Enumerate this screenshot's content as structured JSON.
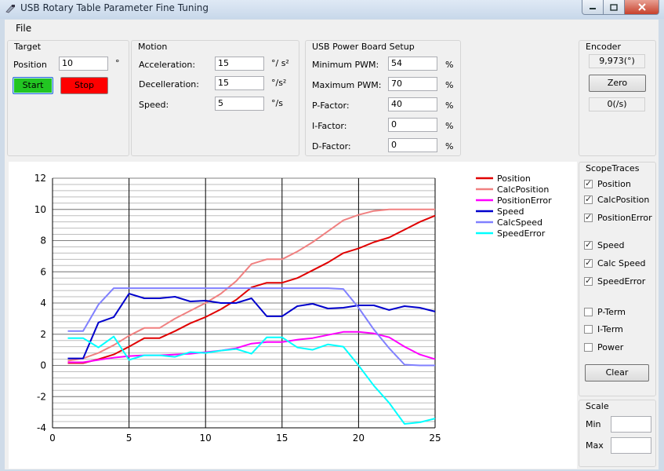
{
  "window": {
    "title": "USB Rotary Table Parameter Fine Tuning"
  },
  "menu": {
    "file": "File"
  },
  "target": {
    "title": "Target",
    "position_label": "Position",
    "position_value": "10",
    "unit": "°",
    "start": "Start",
    "stop": "Stop"
  },
  "motion": {
    "title": "Motion",
    "rows": [
      {
        "label": "Acceleration:",
        "value": "15",
        "unit": "°/ s²"
      },
      {
        "label": "Decelleration:",
        "value": "15",
        "unit": "°/s²"
      },
      {
        "label": "Speed:",
        "value": "5",
        "unit": "°/s"
      }
    ]
  },
  "power": {
    "title": "USB Power Board Setup",
    "rows": [
      {
        "label": "Minimum PWM:",
        "value": "54",
        "unit": "%"
      },
      {
        "label": "Maximum PWM:",
        "value": "70",
        "unit": "%"
      },
      {
        "label": "P-Factor:",
        "value": "40",
        "unit": "%"
      },
      {
        "label": "I-Factor:",
        "value": "0",
        "unit": "%"
      },
      {
        "label": "D-Factor:",
        "value": "0",
        "unit": "%"
      }
    ]
  },
  "encoder": {
    "title": "Encoder",
    "angle": "9,973(°)",
    "zero": "Zero",
    "speed": "0(/s)"
  },
  "scope": {
    "title": "ScopeTraces",
    "items": [
      {
        "label": "Position",
        "checked": true
      },
      {
        "label": "CalcPosition",
        "checked": true
      },
      {
        "label": "PositionError",
        "checked": true
      },
      {
        "label": "Speed",
        "checked": true
      },
      {
        "label": "Calc Speed",
        "checked": true
      },
      {
        "label": "SpeedError",
        "checked": true
      },
      {
        "label": "P-Term",
        "checked": false
      },
      {
        "label": "I-Term",
        "checked": false
      },
      {
        "label": "Power",
        "checked": false
      }
    ],
    "clear": "Clear"
  },
  "scale": {
    "title": "Scale",
    "min_label": "Min",
    "max_label": "Max",
    "min_value": "",
    "max_value": ""
  },
  "colors": {
    "start": "#22c522",
    "stop": "#ff0000"
  },
  "chart_data": {
    "type": "line",
    "xlim": [
      0,
      25
    ],
    "ylim": [
      -4,
      12
    ],
    "x_ticks": [
      0,
      5,
      10,
      15,
      20,
      25
    ],
    "y_ticks": [
      -4,
      -2,
      0,
      2,
      4,
      6,
      8,
      10,
      12
    ],
    "legend_position": "top-right",
    "x": [
      1,
      2,
      3,
      4,
      5,
      6,
      7,
      8,
      9,
      10,
      11,
      12,
      13,
      14,
      15,
      16,
      17,
      18,
      19,
      20,
      21,
      22,
      23,
      24,
      25
    ],
    "series": [
      {
        "name": "Position",
        "color": "#e00000",
        "values": [
          0.15,
          0.15,
          0.4,
          0.7,
          1.2,
          1.75,
          1.75,
          2.2,
          2.7,
          3.1,
          3.6,
          4.2,
          5.0,
          5.3,
          5.3,
          5.6,
          6.1,
          6.6,
          7.2,
          7.5,
          7.9,
          8.2,
          8.7,
          9.2,
          9.6
        ]
      },
      {
        "name": "CalcPosition",
        "color": "#f08080",
        "values": [
          0.3,
          0.45,
          0.8,
          1.3,
          1.9,
          2.4,
          2.4,
          3.0,
          3.5,
          4.0,
          4.6,
          5.4,
          6.5,
          6.8,
          6.8,
          7.3,
          7.9,
          8.6,
          9.3,
          9.65,
          9.9,
          10.0,
          10.0,
          10.0,
          10.0
        ]
      },
      {
        "name": "PositionError",
        "color": "#ff00ff",
        "values": [
          0.2,
          0.2,
          0.35,
          0.5,
          0.6,
          0.65,
          0.65,
          0.7,
          0.75,
          0.85,
          0.95,
          1.1,
          1.4,
          1.5,
          1.5,
          1.65,
          1.75,
          1.95,
          2.15,
          2.15,
          2.05,
          1.8,
          1.2,
          0.7,
          0.4
        ]
      },
      {
        "name": "Speed",
        "color": "#0000cc",
        "values": [
          0.45,
          0.45,
          2.75,
          3.1,
          4.6,
          4.3,
          4.3,
          4.4,
          4.1,
          4.15,
          4.0,
          4.0,
          4.3,
          3.15,
          3.15,
          3.8,
          3.95,
          3.65,
          3.7,
          3.85,
          3.85,
          3.55,
          3.8,
          3.7,
          3.45
        ]
      },
      {
        "name": "CalcSpeed",
        "color": "#8080ff",
        "values": [
          2.2,
          2.2,
          3.9,
          4.95,
          4.95,
          4.95,
          4.95,
          4.95,
          4.95,
          4.95,
          4.95,
          4.95,
          4.95,
          4.95,
          4.95,
          4.95,
          4.95,
          4.95,
          4.9,
          3.7,
          2.3,
          1.1,
          0.05,
          0.0,
          0.0
        ]
      },
      {
        "name": "SpeedError",
        "color": "#00ffff",
        "values": [
          1.75,
          1.75,
          1.15,
          1.85,
          0.35,
          0.65,
          0.65,
          0.55,
          0.85,
          0.8,
          0.95,
          1.05,
          0.75,
          1.8,
          1.8,
          1.15,
          1.0,
          1.35,
          1.2,
          0.0,
          -1.3,
          -2.4,
          -3.75,
          -3.65,
          -3.4
        ]
      }
    ]
  }
}
